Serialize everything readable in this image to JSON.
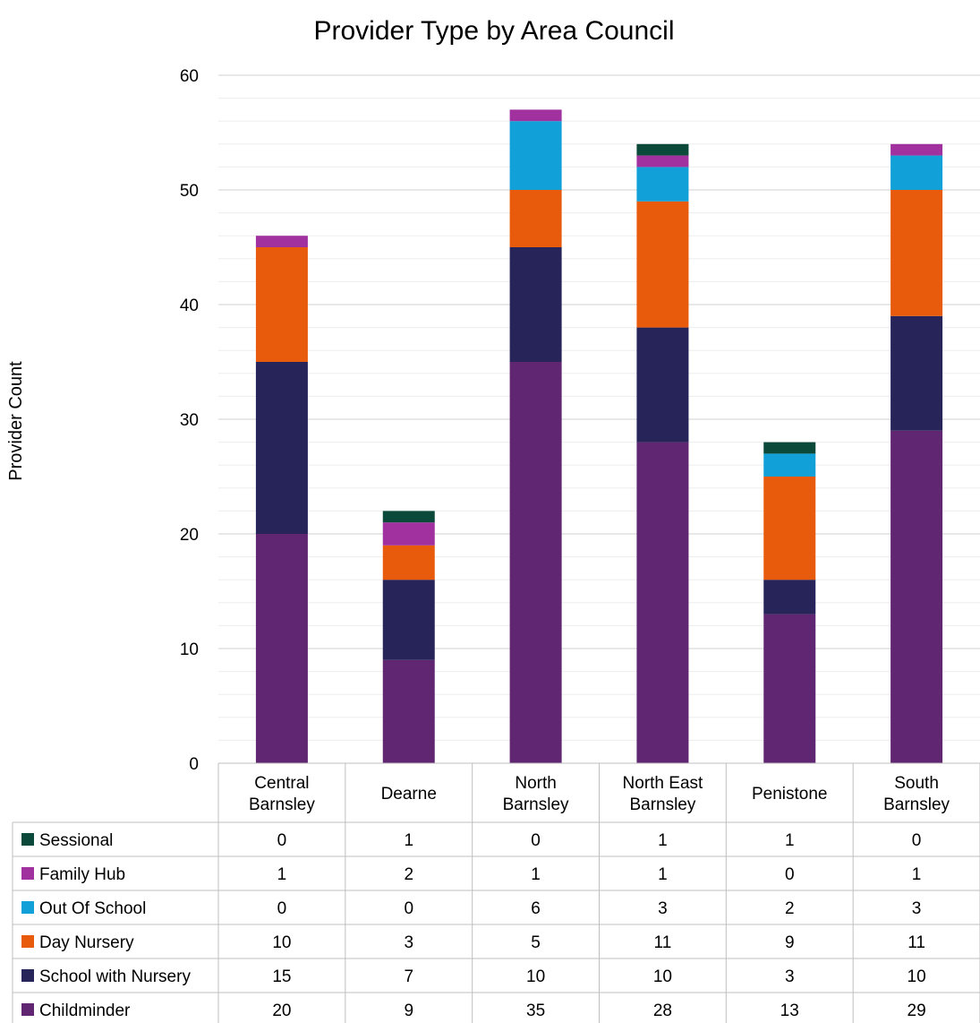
{
  "chart_data": {
    "type": "bar",
    "stacked": true,
    "title": "Provider Type by Area Council",
    "xlabel": "",
    "ylabel": "Provider Count",
    "ylim": [
      0,
      60
    ],
    "yticks": [
      0,
      10,
      20,
      30,
      40,
      50,
      60
    ],
    "grid": true,
    "legend": "data-table-left",
    "categories": [
      [
        "Central",
        "Barnsley"
      ],
      [
        "Dearne"
      ],
      [
        "North",
        "Barnsley"
      ],
      [
        "North East",
        "Barnsley"
      ],
      [
        "Penistone"
      ],
      [
        "South",
        "Barnsley"
      ]
    ],
    "series": [
      {
        "name": "Childminder",
        "color": "#612672",
        "values": [
          20,
          9,
          35,
          28,
          13,
          29
        ]
      },
      {
        "name": "School with Nursery",
        "color": "#27245a",
        "values": [
          15,
          7,
          10,
          10,
          3,
          10
        ]
      },
      {
        "name": "Day Nursery",
        "color": "#e95b0c",
        "values": [
          10,
          3,
          5,
          11,
          9,
          11
        ]
      },
      {
        "name": "Out Of School",
        "color": "#11a0d7",
        "values": [
          0,
          0,
          6,
          3,
          2,
          3
        ]
      },
      {
        "name": "Family Hub",
        "color": "#a0319e",
        "values": [
          1,
          2,
          1,
          1,
          0,
          1
        ]
      },
      {
        "name": "Sessional",
        "color": "#0b4a3b",
        "values": [
          0,
          1,
          0,
          1,
          1,
          0
        ]
      }
    ]
  }
}
